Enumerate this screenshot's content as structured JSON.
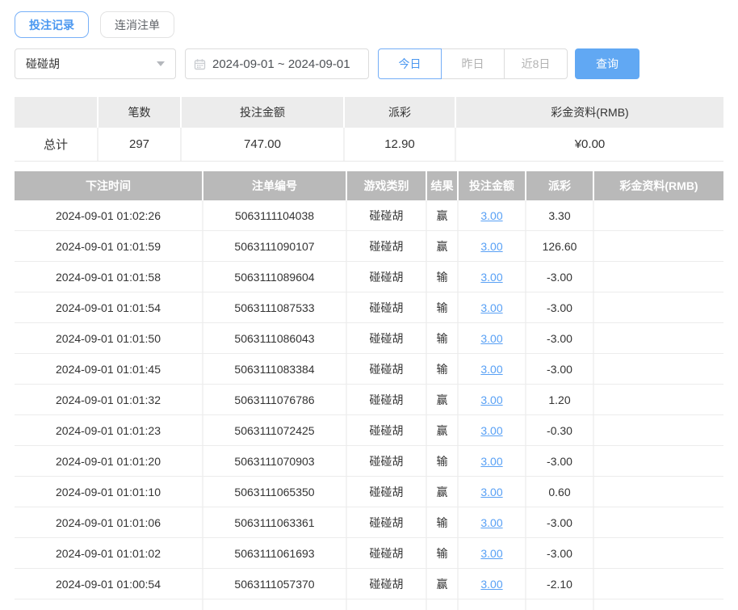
{
  "tabs": [
    {
      "label": "投注记录",
      "active": true
    },
    {
      "label": "连消注单",
      "active": false
    }
  ],
  "filters": {
    "game_select": {
      "value": "碰碰胡"
    },
    "date_range": {
      "value": "2024-09-01 ~ 2024-09-01"
    },
    "quick_buttons": [
      {
        "label": "今日",
        "active": true
      },
      {
        "label": "昨日",
        "active": false
      },
      {
        "label": "近8日",
        "active": false
      }
    ],
    "search_label": "查询"
  },
  "summary": {
    "headers": [
      "",
      "笔数",
      "投注金额",
      "派彩",
      "彩金资料(RMB)"
    ],
    "total": {
      "label": "总计",
      "count": "297",
      "bet_amount": "747.00",
      "payout": "12.90",
      "bonus": "¥0.00"
    }
  },
  "records": {
    "headers": [
      "下注时间",
      "注单编号",
      "游戏类别",
      "结果",
      "投注金额",
      "派彩",
      "彩金资料(RMB)"
    ],
    "rows": [
      {
        "time": "2024-09-01 01:02:26",
        "order": "5063111104038",
        "game": "碰碰胡",
        "result": "赢",
        "bet": "3.00",
        "payout": "3.30",
        "bonus": ""
      },
      {
        "time": "2024-09-01 01:01:59",
        "order": "5063111090107",
        "game": "碰碰胡",
        "result": "赢",
        "bet": "3.00",
        "payout": "126.60",
        "bonus": ""
      },
      {
        "time": "2024-09-01 01:01:58",
        "order": "5063111089604",
        "game": "碰碰胡",
        "result": "输",
        "bet": "3.00",
        "payout": "-3.00",
        "bonus": ""
      },
      {
        "time": "2024-09-01 01:01:54",
        "order": "5063111087533",
        "game": "碰碰胡",
        "result": "输",
        "bet": "3.00",
        "payout": "-3.00",
        "bonus": ""
      },
      {
        "time": "2024-09-01 01:01:50",
        "order": "5063111086043",
        "game": "碰碰胡",
        "result": "输",
        "bet": "3.00",
        "payout": "-3.00",
        "bonus": ""
      },
      {
        "time": "2024-09-01 01:01:45",
        "order": "5063111083384",
        "game": "碰碰胡",
        "result": "输",
        "bet": "3.00",
        "payout": "-3.00",
        "bonus": ""
      },
      {
        "time": "2024-09-01 01:01:32",
        "order": "5063111076786",
        "game": "碰碰胡",
        "result": "赢",
        "bet": "3.00",
        "payout": "1.20",
        "bonus": ""
      },
      {
        "time": "2024-09-01 01:01:23",
        "order": "5063111072425",
        "game": "碰碰胡",
        "result": "赢",
        "bet": "3.00",
        "payout": "-0.30",
        "bonus": ""
      },
      {
        "time": "2024-09-01 01:01:20",
        "order": "5063111070903",
        "game": "碰碰胡",
        "result": "输",
        "bet": "3.00",
        "payout": "-3.00",
        "bonus": ""
      },
      {
        "time": "2024-09-01 01:01:10",
        "order": "5063111065350",
        "game": "碰碰胡",
        "result": "赢",
        "bet": "3.00",
        "payout": "0.60",
        "bonus": ""
      },
      {
        "time": "2024-09-01 01:01:06",
        "order": "5063111063361",
        "game": "碰碰胡",
        "result": "输",
        "bet": "3.00",
        "payout": "-3.00",
        "bonus": ""
      },
      {
        "time": "2024-09-01 01:01:02",
        "order": "5063111061693",
        "game": "碰碰胡",
        "result": "输",
        "bet": "3.00",
        "payout": "-3.00",
        "bonus": ""
      },
      {
        "time": "2024-09-01 01:00:54",
        "order": "5063111057370",
        "game": "碰碰胡",
        "result": "赢",
        "bet": "3.00",
        "payout": "-2.10",
        "bonus": ""
      },
      {
        "time": "",
        "order": "",
        "game": "",
        "result": "",
        "bet": "",
        "payout": "",
        "bonus": ""
      }
    ]
  },
  "colors": {
    "accent_blue": "#4a97f0",
    "accent_border": "#74aef7",
    "search_button_bg": "#61a8f3",
    "table_header_gray": "#b9b9b9",
    "summary_header_gray": "#ececec",
    "link_blue": "#58a0f5",
    "negative_red": "#f15b5b"
  }
}
